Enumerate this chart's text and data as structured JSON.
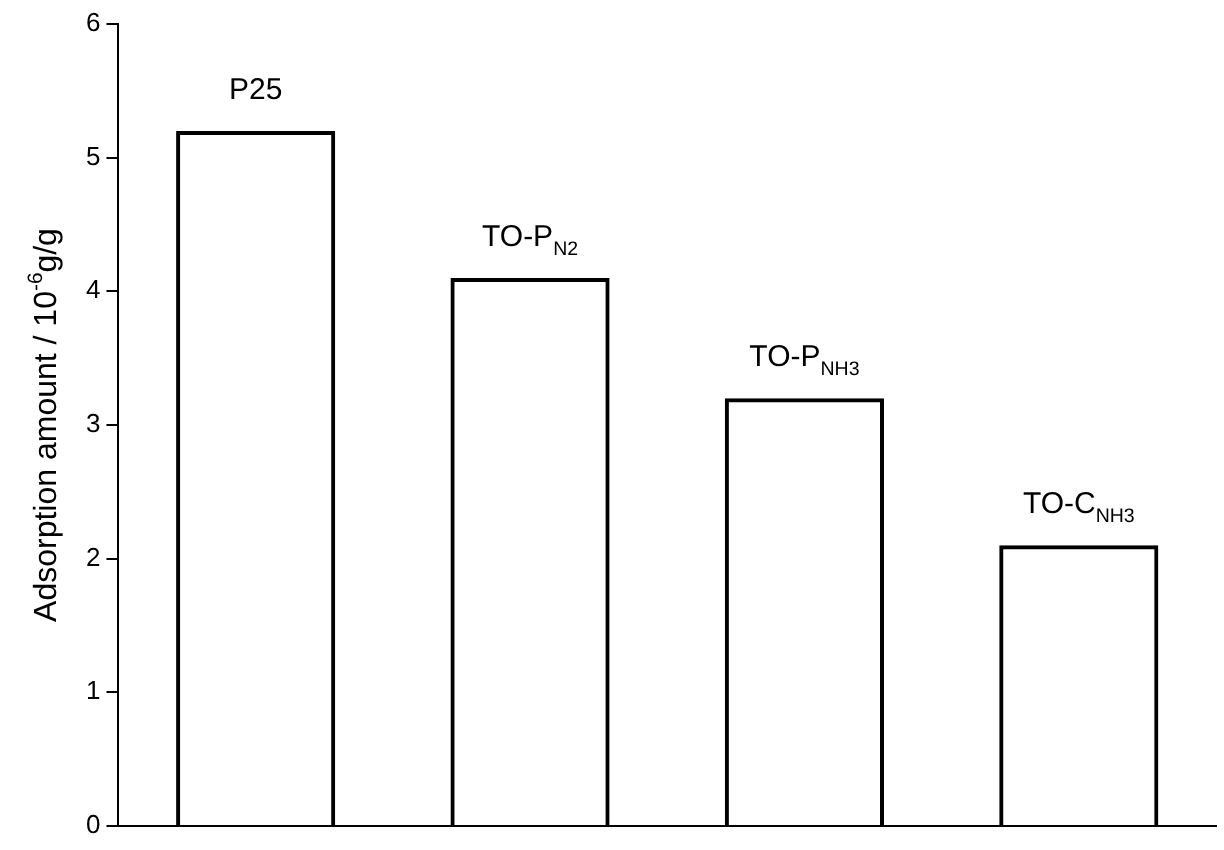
{
  "chart_data": {
    "type": "bar",
    "ylabel": "Adsorption amount / 10$^{-6}$g/g",
    "categories": [
      "P25",
      "TO-P$_{N2}$",
      "TO-P$_{NH3}$",
      "TO-C$_{NH3}$"
    ],
    "values": [
      5.2,
      4.1,
      3.2,
      2.1
    ],
    "color": "#000000",
    "ylim": [
      0,
      6
    ],
    "yticks": [
      0,
      1,
      2,
      3,
      4,
      5,
      6
    ],
    "grid": false,
    "legend": false,
    "tick_labels": "y"
  }
}
